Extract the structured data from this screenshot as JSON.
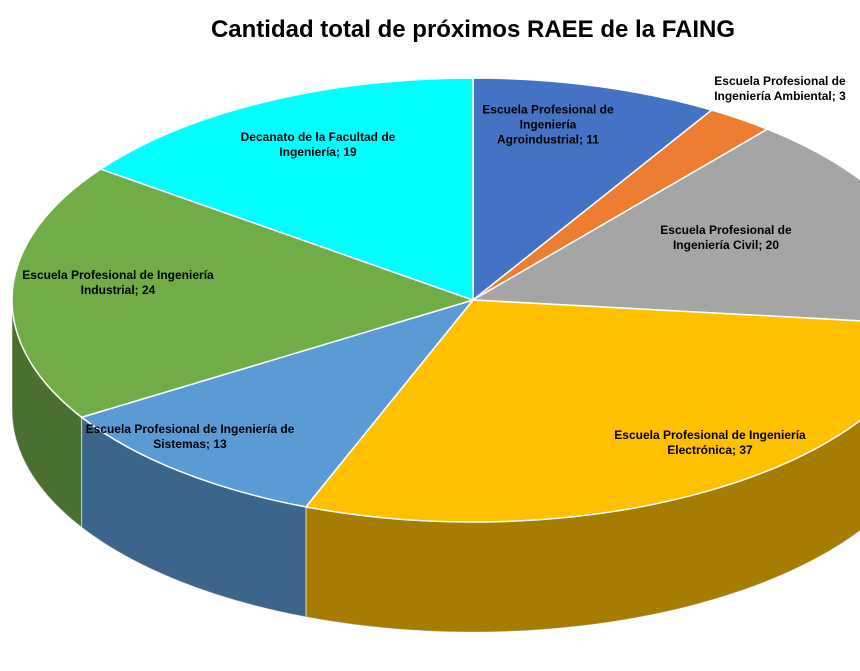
{
  "chart_data": {
    "type": "pie",
    "title": "Cantidad total de próximos RAEE de la FAING",
    "categories": [
      "Escuela Profesional de Ingeniería Agroindustrial",
      "Escuela Profesional de Ingeniería Ambiental",
      "Escuela Profesional de Ingeniería Civil",
      "Escuela Profesional de Ingeniería Electrónica",
      "Escuela Profesional de Ingeniería de Sistemas",
      "Escuela Profesional de Ingeniería Industrial",
      "Decanato de la Facultad de Ingeniería"
    ],
    "values": [
      11,
      3,
      20,
      37,
      13,
      24,
      19
    ],
    "colors": [
      "#4472c4",
      "#ed7d31",
      "#a5a5a5",
      "#ffc000",
      "#5b9bd5",
      "#70ad47",
      "#00ffff"
    ],
    "label_separator": "; "
  }
}
